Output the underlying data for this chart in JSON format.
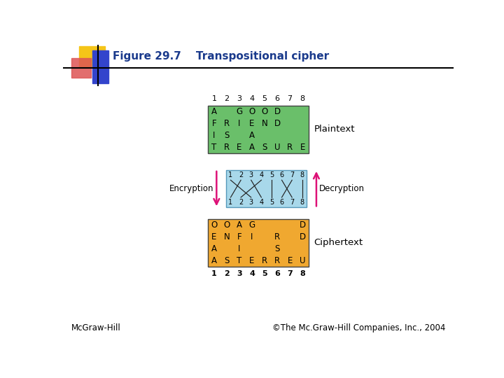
{
  "title": "Figure 29.7    Transpositional cipher",
  "title_color": "#1a3a8c",
  "bg_color": "#ffffff",
  "plaintext_box_color": "#6abf6a",
  "cipher_box_color": "#f0a830",
  "permutation_box_color": "#a8d8ea",
  "plaintext_rows": [
    [
      "A",
      " ",
      "G",
      "O",
      "O",
      "D",
      " ",
      " "
    ],
    [
      "F",
      "R",
      "I",
      "E",
      "N",
      "D",
      " ",
      " "
    ],
    [
      "I",
      "S",
      " ",
      "A",
      " ",
      " ",
      " ",
      " "
    ],
    [
      "T",
      "R",
      "E",
      "A",
      "S",
      "U",
      "R",
      "E"
    ]
  ],
  "ciphertext_rows": [
    [
      "O",
      "O",
      "A",
      "G",
      " ",
      " ",
      " ",
      "D"
    ],
    [
      "E",
      "N",
      "F",
      "I",
      " ",
      "R",
      " ",
      "D"
    ],
    [
      "A",
      " ",
      "I",
      " ",
      " ",
      "S",
      " ",
      " "
    ],
    [
      "A",
      "S",
      "T",
      "E",
      "R",
      "R",
      "E",
      "U"
    ]
  ],
  "column_nums": [
    "1",
    "2",
    "3",
    "4",
    "5",
    "6",
    "7",
    "8"
  ],
  "permutation": [
    3,
    1,
    4,
    2,
    5,
    7,
    6,
    8
  ],
  "encryption_label": "Encryption",
  "decryption_label": "Decryption",
  "plaintext_label": "Plaintext",
  "ciphertext_label": "Ciphertext",
  "footer_left": "McGraw-Hill",
  "footer_right": "©The Mc.Graw-Hill Companies, Inc., 2004"
}
